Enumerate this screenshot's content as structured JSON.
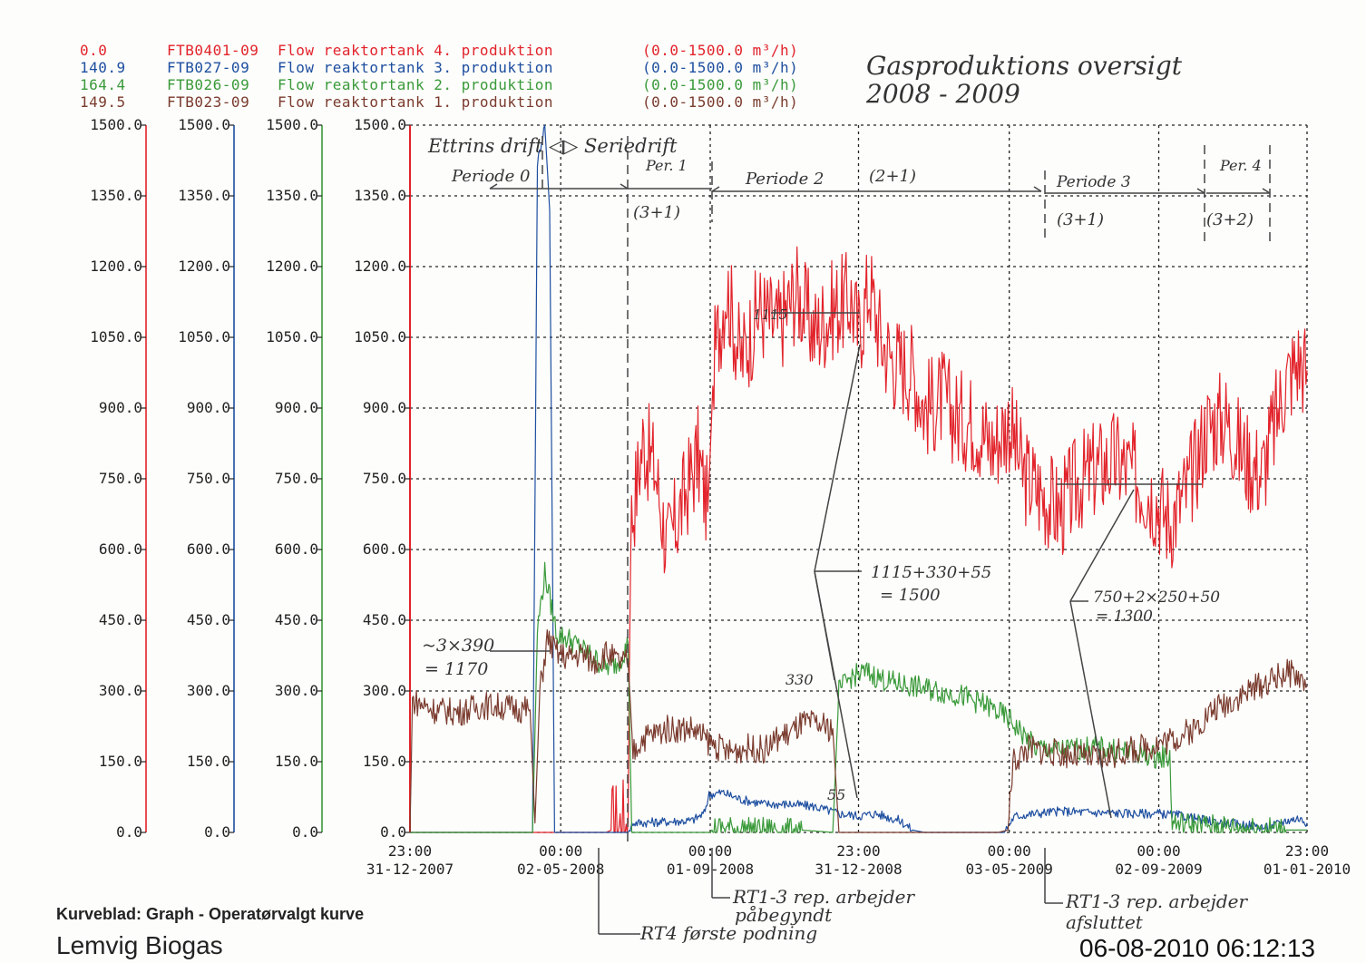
{
  "legend": [
    {
      "value": "0.0",
      "tag": "FTB0401-09",
      "label": "Flow reaktortank 4. produktion",
      "range": "(0.0-1500.0 m³/h)",
      "color": "#e2232b"
    },
    {
      "value": "140.9",
      "tag": "FTB027-09",
      "label": "Flow reaktortank 3. produktion",
      "range": "(0.0-1500.0 m³/h)",
      "color": "#1e4fa0"
    },
    {
      "value": "164.4",
      "tag": "FTB026-09",
      "label": "Flow reaktortank 2. produktion",
      "range": "(0.0-1500.0 m³/h)",
      "color": "#3a9a3a"
    },
    {
      "value": "149.5",
      "tag": "FTB023-09",
      "label": "Flow reaktortank 1. produktion",
      "range": "(0.0-1500.0 m³/h)",
      "color": "#7a3b2e"
    }
  ],
  "axis_colors": [
    "#e2232b",
    "#1e4fa0",
    "#3a9a3a",
    "#e2232b"
  ],
  "notes": {
    "title_line1": "Gasproduktions oversigt",
    "title_line2": "2008 - 2009",
    "mode": "Ettrins drift ◁▷ Seriedrift",
    "periode0": "Periode 0",
    "per1": "Per. 1",
    "per1_cfg": "(3+1)",
    "periode2": "Periode 2",
    "periode2_cfg": "(2+1)",
    "periode3": "Periode 3",
    "periode3_cfg": "(3+1)",
    "per4": "Per. 4",
    "per4_cfg": "(3+2)",
    "level_1115": "1115",
    "level_330": "330",
    "level_55": "55",
    "early": "~3×390",
    "early_sum": "= 1170",
    "sum_p2": "1115+330+55",
    "sum_p2_total": "= 1500",
    "sum_p3": "750+2×250+50",
    "sum_p3_total": "= 1300",
    "rt13_start_1": "RT1-3 rep. arbejder",
    "rt13_start_2": "påbegyndt",
    "rt4": "RT4 første podning",
    "rt13_end_1": "RT1-3 rep. arbejder",
    "rt13_end_2": "afsluttet"
  },
  "footer": {
    "kurveblad": "Kurveblad:  Graph  -  Operatørvalgt kurve",
    "site": "Lemvig Biogas",
    "timestamp": "06-08-2010  06:12:13"
  },
  "chart_data": {
    "type": "line",
    "yticks": [
      "1500.0",
      "1350.0",
      "1200.0",
      "1050.0",
      "900.0",
      "750.0",
      "600.0",
      "450.0",
      "300.0",
      "150.0",
      "0.0"
    ],
    "ylim": [
      0,
      1500
    ],
    "xticks": [
      {
        "time": "23:00",
        "date": "31-12-2007",
        "t": 0
      },
      {
        "time": "00:00",
        "date": "02-05-2008",
        "t": 123
      },
      {
        "time": "00:00",
        "date": "01-09-2008",
        "t": 245
      },
      {
        "time": "23:00",
        "date": "31-12-2008",
        "t": 366
      },
      {
        "time": "00:00",
        "date": "03-05-2009",
        "t": 489
      },
      {
        "time": "00:00",
        "date": "02-09-2009",
        "t": 611
      },
      {
        "time": "23:00",
        "date": "01-01-2010",
        "t": 732
      }
    ],
    "xlim": [
      0,
      732
    ],
    "series": [
      {
        "name": "FTB0401-09 Flow reaktortank 4. produktion",
        "color": "#e2232b",
        "points": [
          [
            0,
            0
          ],
          [
            160,
            0
          ],
          [
            178,
            20
          ],
          [
            180,
            650
          ],
          [
            190,
            830
          ],
          [
            200,
            770
          ],
          [
            210,
            600
          ],
          [
            220,
            680
          ],
          [
            235,
            800
          ],
          [
            243,
            680
          ],
          [
            248,
            1000
          ],
          [
            258,
            1160
          ],
          [
            270,
            1000
          ],
          [
            285,
            1110
          ],
          [
            300,
            1070
          ],
          [
            315,
            1150
          ],
          [
            330,
            1060
          ],
          [
            345,
            1110
          ],
          [
            360,
            1130
          ],
          [
            366,
            1060
          ],
          [
            375,
            1160
          ],
          [
            385,
            1040
          ],
          [
            395,
            1000
          ],
          [
            410,
            980
          ],
          [
            420,
            900
          ],
          [
            435,
            920
          ],
          [
            445,
            880
          ],
          [
            460,
            870
          ],
          [
            475,
            820
          ],
          [
            489,
            870
          ],
          [
            500,
            760
          ],
          [
            515,
            720
          ],
          [
            530,
            680
          ],
          [
            545,
            740
          ],
          [
            560,
            770
          ],
          [
            575,
            790
          ],
          [
            590,
            760
          ],
          [
            605,
            720
          ],
          [
            620,
            660
          ],
          [
            635,
            730
          ],
          [
            650,
            860
          ],
          [
            665,
            880
          ],
          [
            680,
            800
          ],
          [
            695,
            760
          ],
          [
            705,
            860
          ],
          [
            715,
            960
          ],
          [
            725,
            1000
          ],
          [
            732,
            980
          ]
        ]
      },
      {
        "name": "FTB027-09 Flow reaktortank 3. produktion",
        "color": "#1e4fa0",
        "points": [
          [
            0,
            0
          ],
          [
            100,
            0
          ],
          [
            104,
            1420
          ],
          [
            110,
            1500
          ],
          [
            114,
            1320
          ],
          [
            118,
            0
          ],
          [
            178,
            0
          ],
          [
            182,
            20
          ],
          [
            230,
            25
          ],
          [
            240,
            40
          ],
          [
            244,
            80
          ],
          [
            255,
            85
          ],
          [
            270,
            70
          ],
          [
            290,
            60
          ],
          [
            310,
            60
          ],
          [
            330,
            55
          ],
          [
            350,
            40
          ],
          [
            366,
            35
          ],
          [
            380,
            40
          ],
          [
            400,
            25
          ],
          [
            410,
            5
          ],
          [
            420,
            0
          ],
          [
            485,
            0
          ],
          [
            492,
            30
          ],
          [
            495,
            35
          ],
          [
            510,
            40
          ],
          [
            530,
            45
          ],
          [
            560,
            42
          ],
          [
            590,
            40
          ],
          [
            611,
            40
          ],
          [
            630,
            35
          ],
          [
            650,
            25
          ],
          [
            665,
            20
          ],
          [
            685,
            15
          ],
          [
            700,
            10
          ],
          [
            715,
            25
          ],
          [
            725,
            30
          ],
          [
            732,
            20
          ]
        ]
      },
      {
        "name": "FTB026-09 Flow reaktortank 2. produktion",
        "color": "#3a9a3a",
        "points": [
          [
            0,
            0
          ],
          [
            100,
            0
          ],
          [
            104,
            430
          ],
          [
            110,
            550
          ],
          [
            120,
            420
          ],
          [
            130,
            410
          ],
          [
            140,
            390
          ],
          [
            150,
            370
          ],
          [
            160,
            350
          ],
          [
            170,
            360
          ],
          [
            178,
            400
          ],
          [
            181,
            0
          ],
          [
            245,
            0
          ],
          [
            248,
            10
          ],
          [
            320,
            5
          ],
          [
            345,
            0
          ],
          [
            350,
            300
          ],
          [
            360,
            330
          ],
          [
            372,
            340
          ],
          [
            390,
            320
          ],
          [
            410,
            310
          ],
          [
            430,
            300
          ],
          [
            450,
            290
          ],
          [
            470,
            270
          ],
          [
            489,
            240
          ],
          [
            510,
            180
          ],
          [
            530,
            175
          ],
          [
            560,
            180
          ],
          [
            590,
            170
          ],
          [
            611,
            160
          ],
          [
            620,
            160
          ],
          [
            622,
            20
          ],
          [
            650,
            15
          ],
          [
            680,
            10
          ],
          [
            700,
            10
          ],
          [
            715,
            5
          ],
          [
            732,
            5
          ]
        ]
      },
      {
        "name": "FTB023-09 Flow reaktortank 1. produktion",
        "color": "#7a3b2e",
        "points": [
          [
            0,
            0
          ],
          [
            2,
            280
          ],
          [
            20,
            260
          ],
          [
            40,
            255
          ],
          [
            60,
            270
          ],
          [
            80,
            265
          ],
          [
            98,
            260
          ],
          [
            102,
            20
          ],
          [
            106,
            300
          ],
          [
            112,
            410
          ],
          [
            120,
            380
          ],
          [
            130,
            370
          ],
          [
            140,
            380
          ],
          [
            150,
            360
          ],
          [
            160,
            380
          ],
          [
            170,
            360
          ],
          [
            178,
            360
          ],
          [
            182,
            170
          ],
          [
            190,
            200
          ],
          [
            210,
            220
          ],
          [
            230,
            220
          ],
          [
            245,
            190
          ],
          [
            260,
            170
          ],
          [
            275,
            180
          ],
          [
            290,
            175
          ],
          [
            300,
            200
          ],
          [
            310,
            210
          ],
          [
            320,
            230
          ],
          [
            330,
            230
          ],
          [
            345,
            220
          ],
          [
            350,
            0
          ],
          [
            480,
            0
          ],
          [
            488,
            5
          ],
          [
            492,
            150
          ],
          [
            505,
            180
          ],
          [
            520,
            170
          ],
          [
            540,
            165
          ],
          [
            560,
            155
          ],
          [
            580,
            170
          ],
          [
            600,
            180
          ],
          [
            611,
            190
          ],
          [
            625,
            200
          ],
          [
            640,
            220
          ],
          [
            655,
            260
          ],
          [
            670,
            280
          ],
          [
            685,
            300
          ],
          [
            700,
            320
          ],
          [
            715,
            340
          ],
          [
            725,
            330
          ],
          [
            732,
            310
          ]
        ]
      }
    ]
  }
}
